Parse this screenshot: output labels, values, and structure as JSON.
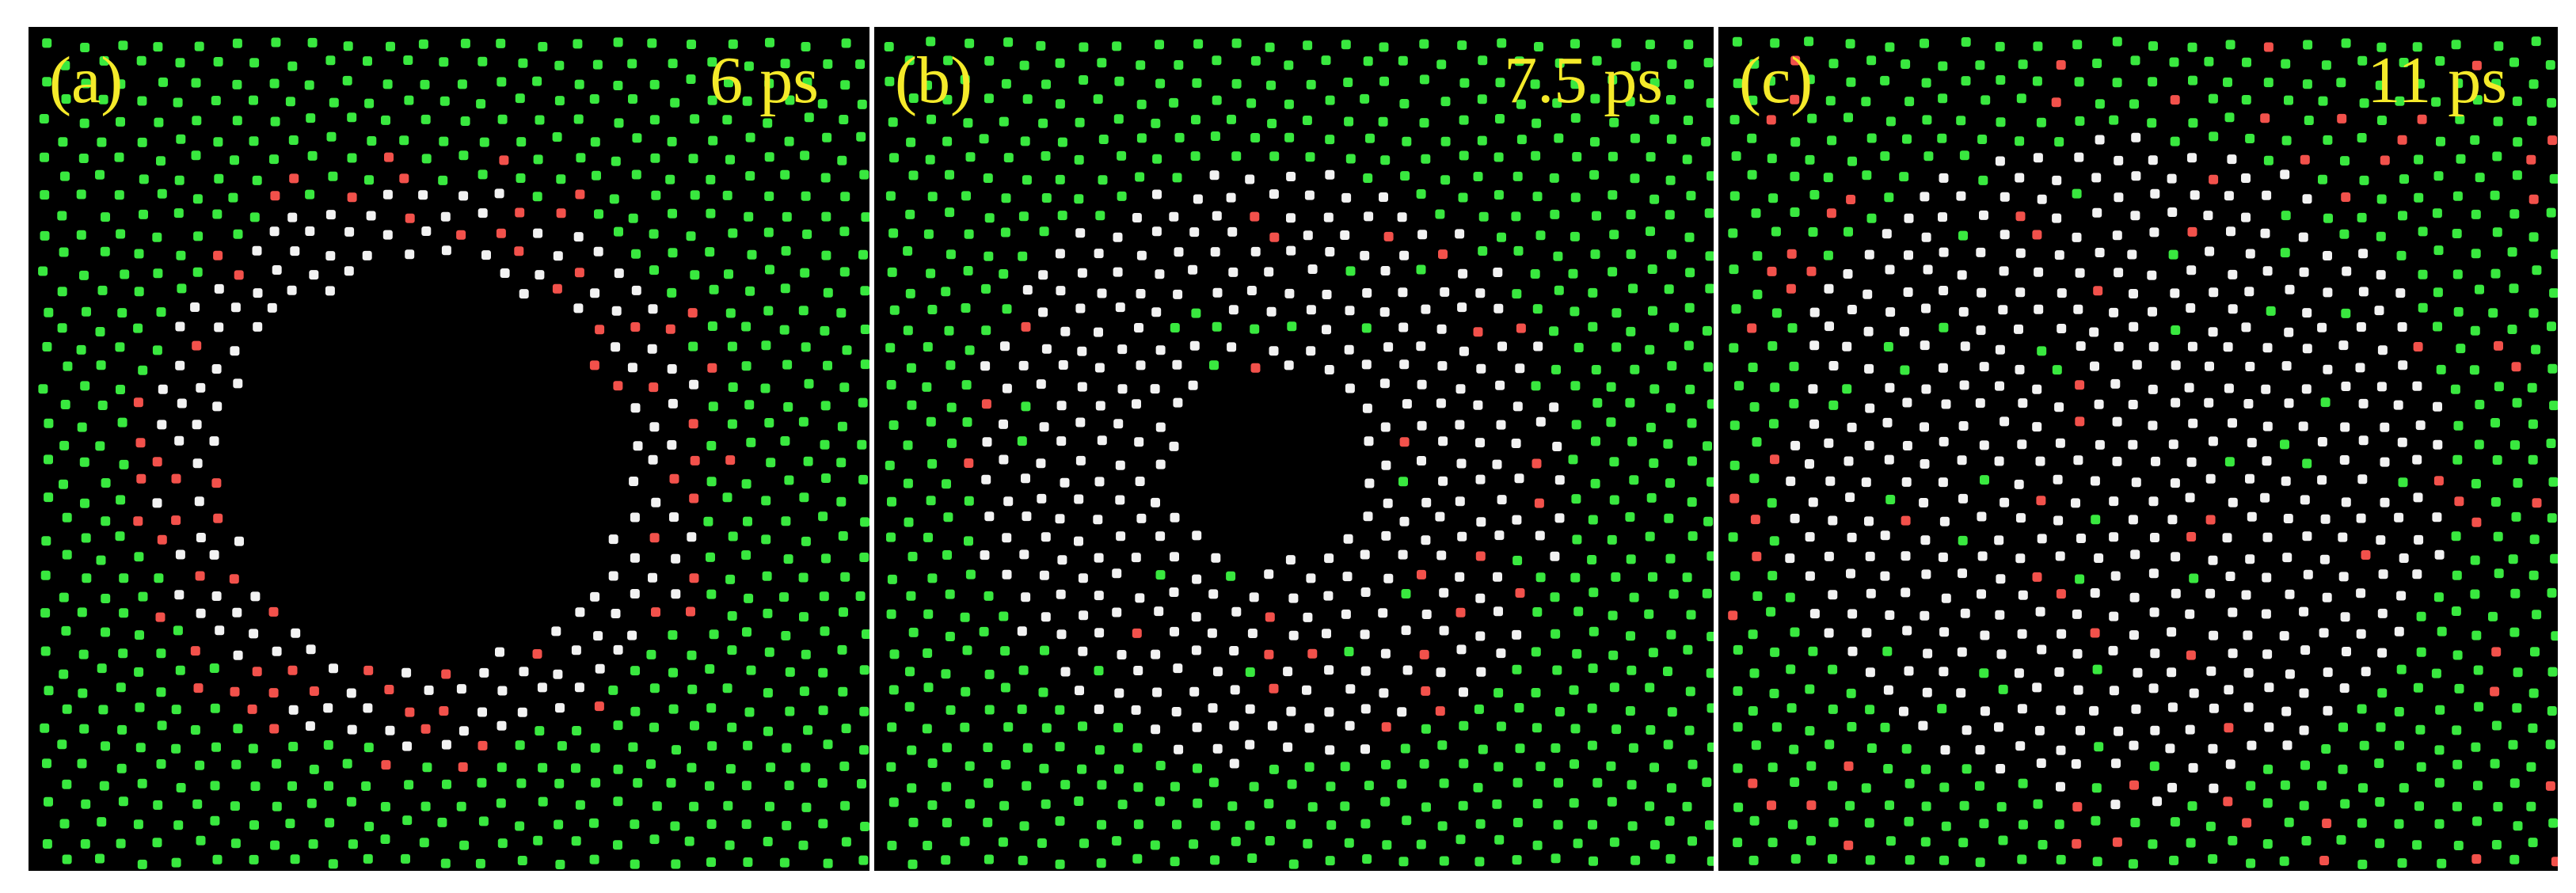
{
  "colors": {
    "background": "#000000",
    "fcc_atom": "#39e83f",
    "other_atom": "#f2f2f2",
    "hcp_atom": "#f2514b",
    "label_text": "#f5ea2a"
  },
  "panels": [
    {
      "label": "(a)",
      "time": "6 ps",
      "void": "large"
    },
    {
      "label": "(b)",
      "time": "7.5 ps",
      "void": "shrinking"
    },
    {
      "label": "(c)",
      "time": "11 ps",
      "void": "closed"
    }
  ]
}
